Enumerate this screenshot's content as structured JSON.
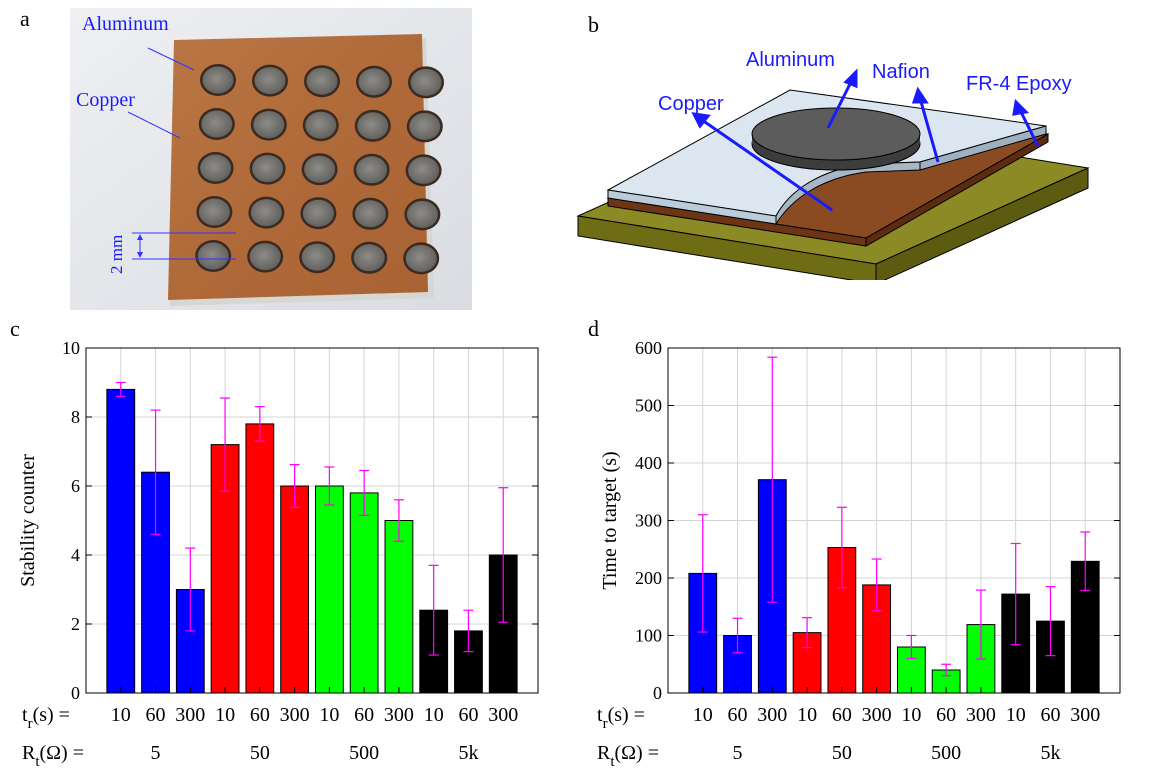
{
  "panels": {
    "a": {
      "letter": "a",
      "labels": {
        "aluminum": "Aluminum",
        "copper": "Copper",
        "dimension": "2 mm"
      }
    },
    "b": {
      "letter": "b",
      "labels": {
        "aluminum": "Aluminum",
        "nafion": "Nafion",
        "copper": "Copper",
        "fr4": "FR-4 Epoxy"
      }
    },
    "c": {
      "letter": "c"
    },
    "d": {
      "letter": "d"
    }
  },
  "colors": {
    "blue": "#0000ff",
    "red": "#ff0000",
    "green": "#00ff00",
    "black": "#000000",
    "errorbar": "#ff00ff",
    "annotation": "#1a1aff"
  },
  "chart_data": [
    {
      "type": "bar",
      "panel": "c",
      "ylabel": "Stability counter",
      "xlabel": "",
      "ylim": [
        0,
        10
      ],
      "yticks": [
        0,
        2,
        4,
        6,
        8,
        10
      ],
      "grid": true,
      "row1_label_main": "t",
      "row1_label_sub": "r",
      "row1_label_tail": "(s) =",
      "row2_label_main": "R",
      "row2_label_sub": "t",
      "row2_label_tail": "(Ω) =",
      "categories": [
        "10",
        "60",
        "300",
        "10",
        "60",
        "300",
        "10",
        "60",
        "300",
        "10",
        "60",
        "300"
      ],
      "groups": [
        "5",
        "50",
        "500",
        "5k"
      ],
      "values": [
        8.8,
        6.4,
        3.0,
        7.2,
        7.8,
        6.0,
        6.0,
        5.8,
        5.0,
        2.4,
        1.8,
        4.0
      ],
      "errors": [
        0.2,
        1.8,
        1.2,
        1.35,
        0.5,
        0.62,
        0.55,
        0.65,
        0.6,
        1.3,
        0.6,
        1.95
      ],
      "bar_colors": [
        "blue",
        "blue",
        "blue",
        "red",
        "red",
        "red",
        "green",
        "green",
        "green",
        "black",
        "black",
        "black"
      ]
    },
    {
      "type": "bar",
      "panel": "d",
      "ylabel": "Time to target (s)",
      "xlabel": "",
      "ylim": [
        0,
        600
      ],
      "yticks": [
        0,
        100,
        200,
        300,
        400,
        500,
        600
      ],
      "grid": true,
      "row1_label_main": "t",
      "row1_label_sub": "r",
      "row1_label_tail": "(s) =",
      "row2_label_main": "R",
      "row2_label_sub": "t",
      "row2_label_tail": "(Ω) =",
      "categories": [
        "10",
        "60",
        "300",
        "10",
        "60",
        "300",
        "10",
        "60",
        "300",
        "10",
        "60",
        "300"
      ],
      "groups": [
        "5",
        "50",
        "500",
        "5k"
      ],
      "values": [
        208,
        100,
        371,
        105,
        253,
        188,
        80,
        40,
        119,
        172,
        125,
        229
      ],
      "errors": [
        102,
        30,
        213,
        26,
        70,
        45,
        20,
        10,
        60,
        88,
        60,
        51
      ],
      "bar_colors": [
        "blue",
        "blue",
        "blue",
        "red",
        "red",
        "red",
        "green",
        "green",
        "green",
        "black",
        "black",
        "black"
      ]
    }
  ]
}
